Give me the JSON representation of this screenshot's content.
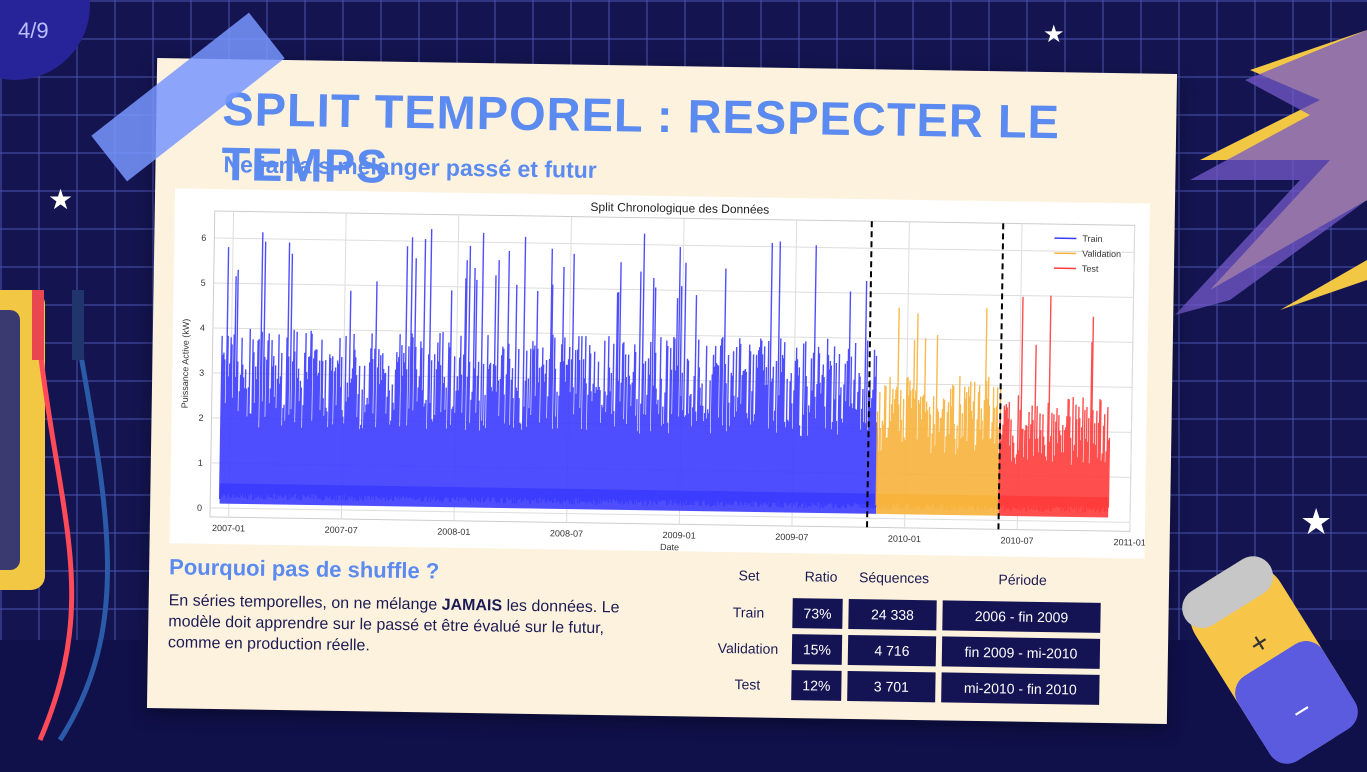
{
  "page_indicator": "4/9",
  "title": "SPLIT TEMPOREL : RESPECTER LE TEMPS",
  "subtitle": "Ne jamais mélanger passé et futur",
  "section_title": "Pourquoi pas de shuffle ?",
  "explanation": {
    "before": "En séries temporelles, on ne mélange ",
    "emphasis": "JAMAIS",
    "after": " les données. Le modèle doit apprendre sur le passé et être évalué sur le futur, comme en production réelle."
  },
  "table": {
    "headers": [
      "Set",
      "Ratio",
      "Séquences",
      "Période"
    ],
    "rows": [
      {
        "set": "Train",
        "ratio": "73%",
        "sequences": "24 338",
        "period": "2006 - fin 2009"
      },
      {
        "set": "Validation",
        "ratio": "15%",
        "sequences": "4 716",
        "period": "fin 2009 - mi-2010"
      },
      {
        "set": "Test",
        "ratio": "12%",
        "sequences": "3 701",
        "period": "mi-2010 - fin 2010"
      }
    ]
  },
  "chart_data": {
    "type": "line",
    "title": "Split Chronologique des Données",
    "xlabel": "Date",
    "ylabel": "Puissance Active (kW)",
    "x_ticks": [
      "2007-01",
      "2007-07",
      "2008-01",
      "2008-07",
      "2009-01",
      "2009-07",
      "2010-01",
      "2010-07",
      "2011-01"
    ],
    "y_ticks": [
      "0",
      "1",
      "2",
      "3",
      "4",
      "5",
      "6"
    ],
    "ylim": [
      -0.2,
      6.6
    ],
    "xlim": [
      "2006-12",
      "2011-01"
    ],
    "grid": true,
    "legend_position": "top-right",
    "split_lines": [
      "2009-11",
      "2010-06"
    ],
    "series": [
      {
        "name": "Train",
        "color": "#3b3bff",
        "start": "2006-12-16",
        "end": "2009-11-15",
        "typical_max": 4.0,
        "peak_max": 6.3
      },
      {
        "name": "Validation",
        "color": "#f7b23b",
        "start": "2009-11-15",
        "end": "2010-06-01",
        "typical_max": 3.2,
        "peak_max": 4.9
      },
      {
        "name": "Test",
        "color": "#ff3b3b",
        "start": "2010-06-01",
        "end": "2010-11-26",
        "typical_max": 2.8,
        "peak_max": 5.1
      }
    ]
  }
}
